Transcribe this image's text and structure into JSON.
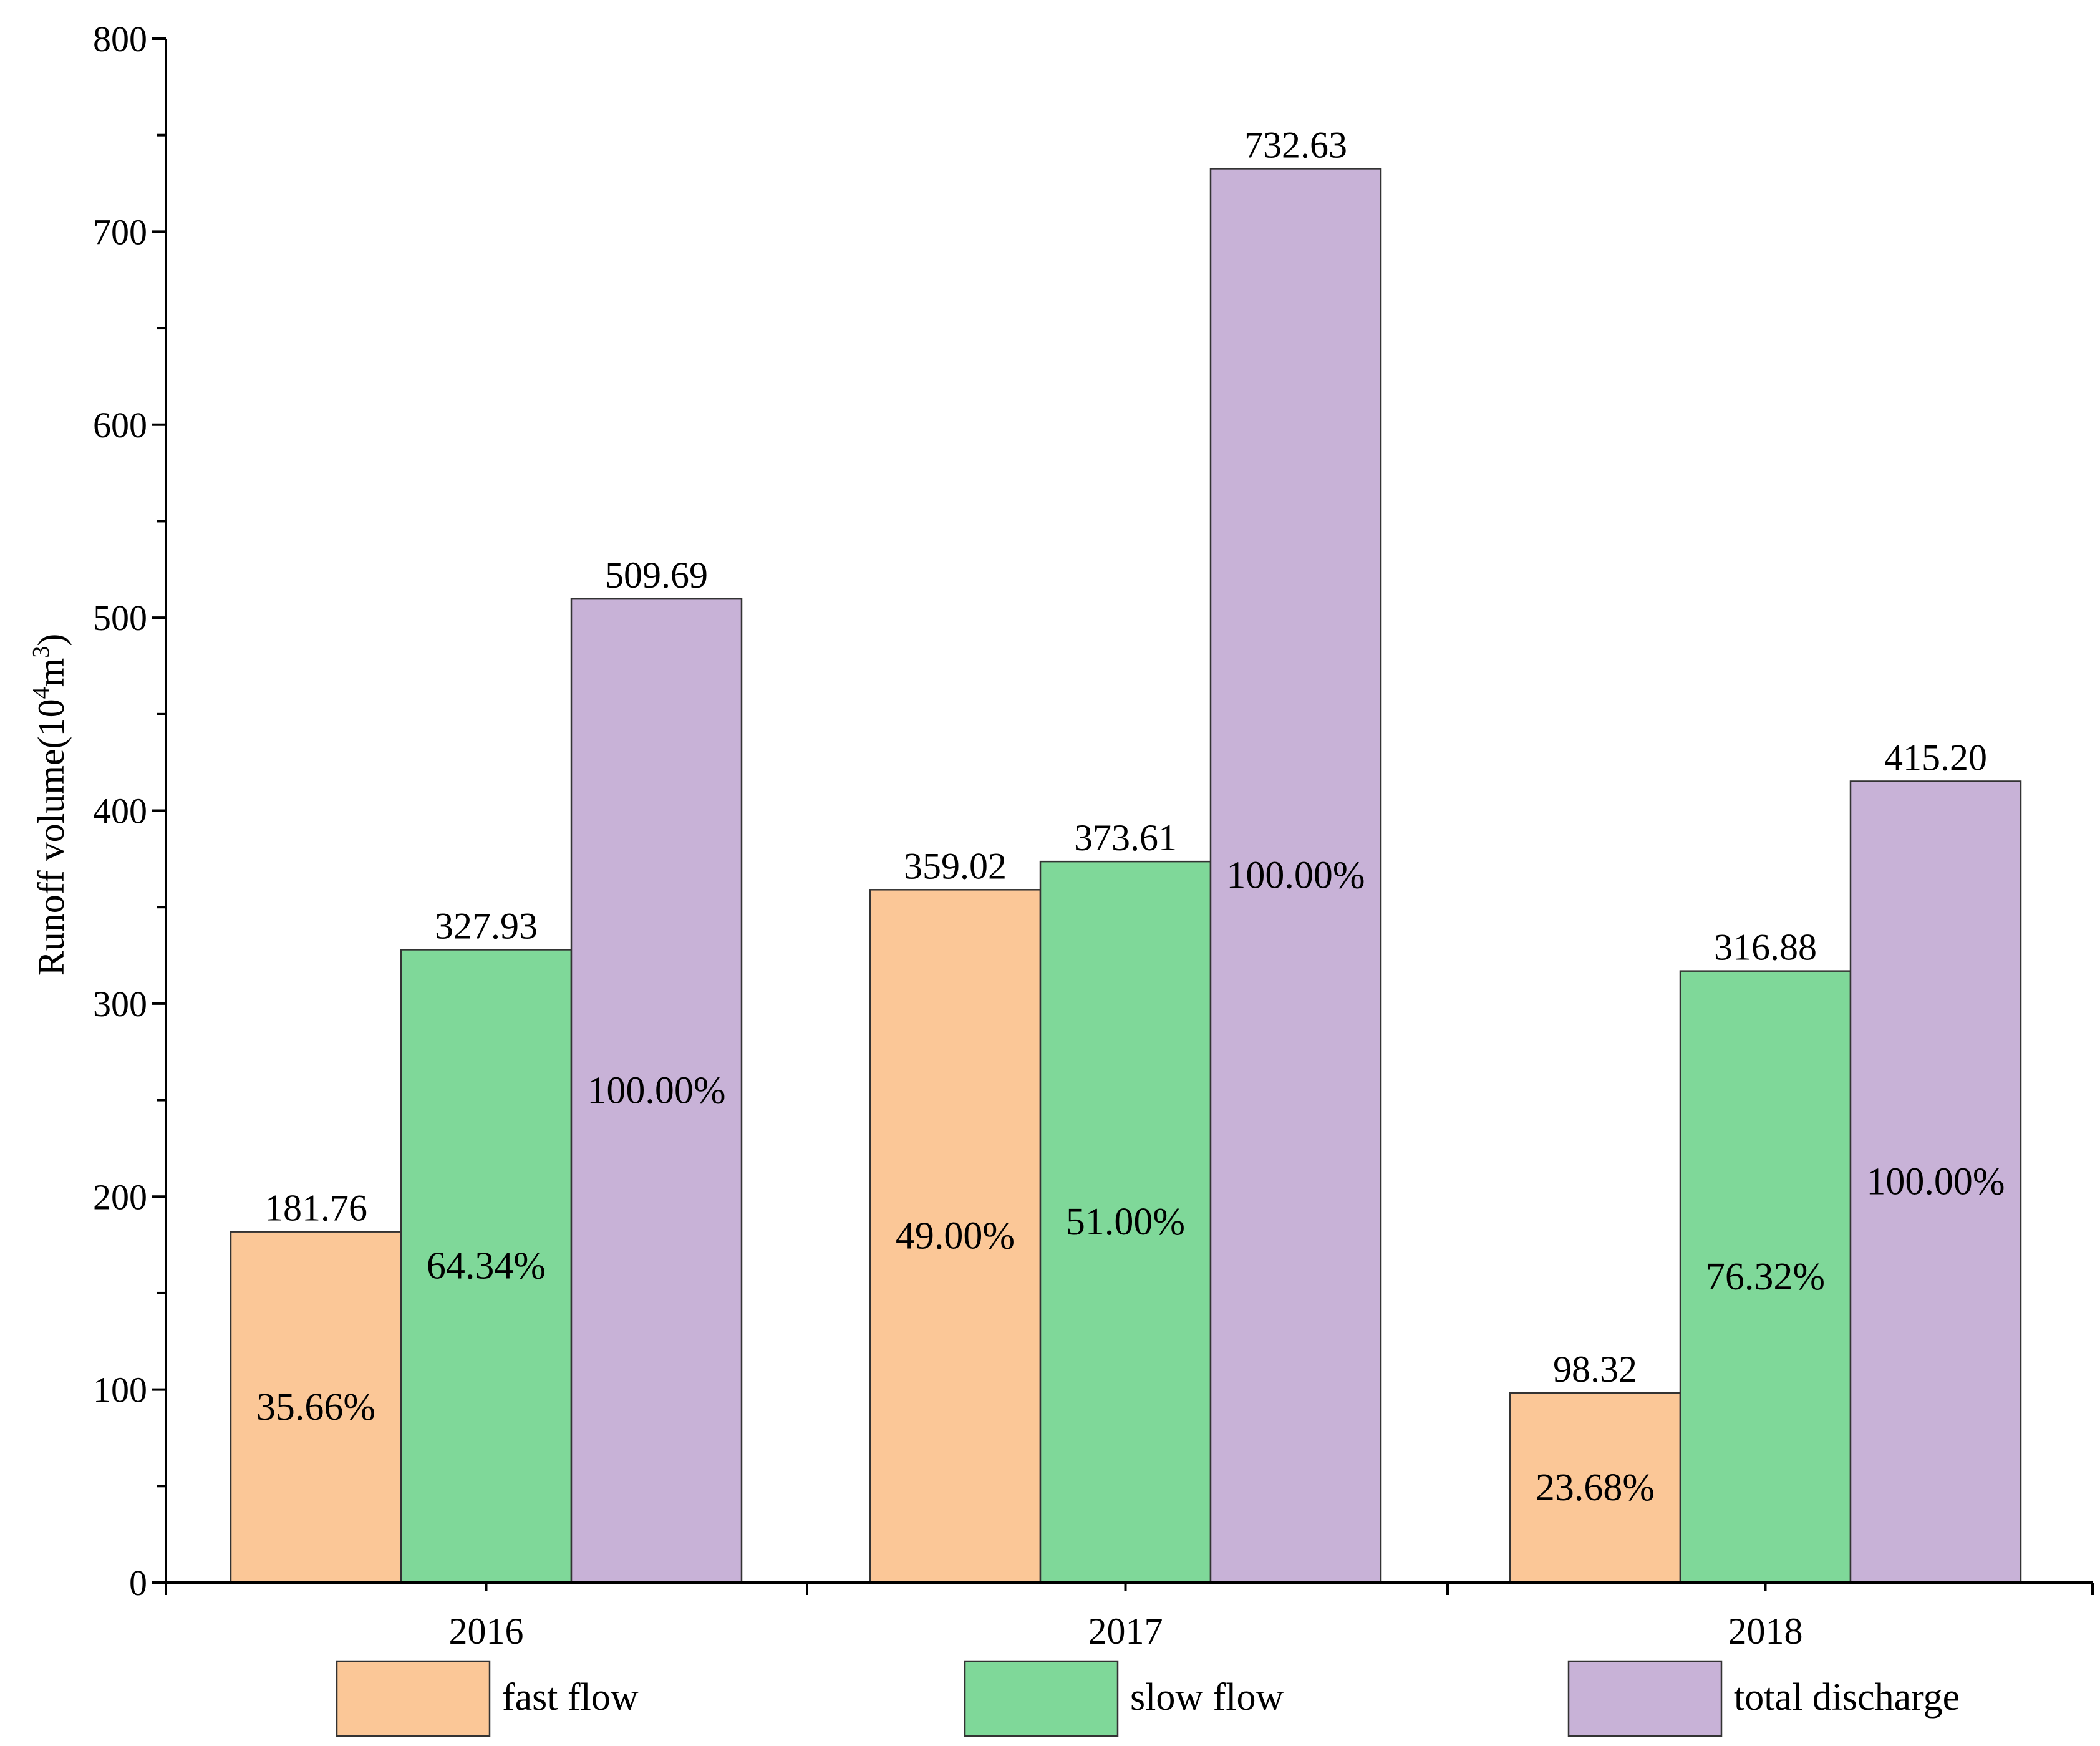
{
  "chart_data": {
    "type": "bar",
    "title": "",
    "xlabel": "",
    "ylabel": "Runoff volume(10",
    "ylabel_sup1": "4",
    "ylabel_mid": "m",
    "ylabel_sup2": "3",
    "ylabel_end": ")",
    "ylim": [
      0,
      800
    ],
    "yticks": [
      "0",
      "100",
      "200",
      "300",
      "400",
      "500",
      "600",
      "700",
      "800"
    ],
    "categories": [
      "2016",
      "2017",
      "2018"
    ],
    "series": [
      {
        "name": "fast flow",
        "color": "#FBC797",
        "values": [
          181.76,
          359.02,
          98.32
        ],
        "value_labels": [
          "181.76",
          "359.02",
          "98.32"
        ],
        "percent_labels": [
          "35.66%",
          "49.00%",
          "23.68%"
        ]
      },
      {
        "name": "slow flow",
        "color": "#7FD899",
        "values": [
          327.93,
          373.61,
          316.88
        ],
        "value_labels": [
          "327.93",
          "373.61",
          "316.88"
        ],
        "percent_labels": [
          "64.34%",
          "51.00%",
          "76.32%"
        ]
      },
      {
        "name": "total discharge",
        "color": "#C8B2D7",
        "values": [
          509.69,
          732.63,
          415.2
        ],
        "value_labels": [
          "509.69",
          "732.63",
          "415.20"
        ],
        "percent_labels": [
          "100.00%",
          "100.00%",
          "100.00%"
        ]
      }
    ],
    "legend": {
      "placement": "bottom",
      "items": [
        "fast flow",
        "slow flow",
        "total discharge"
      ]
    },
    "grid": false
  }
}
